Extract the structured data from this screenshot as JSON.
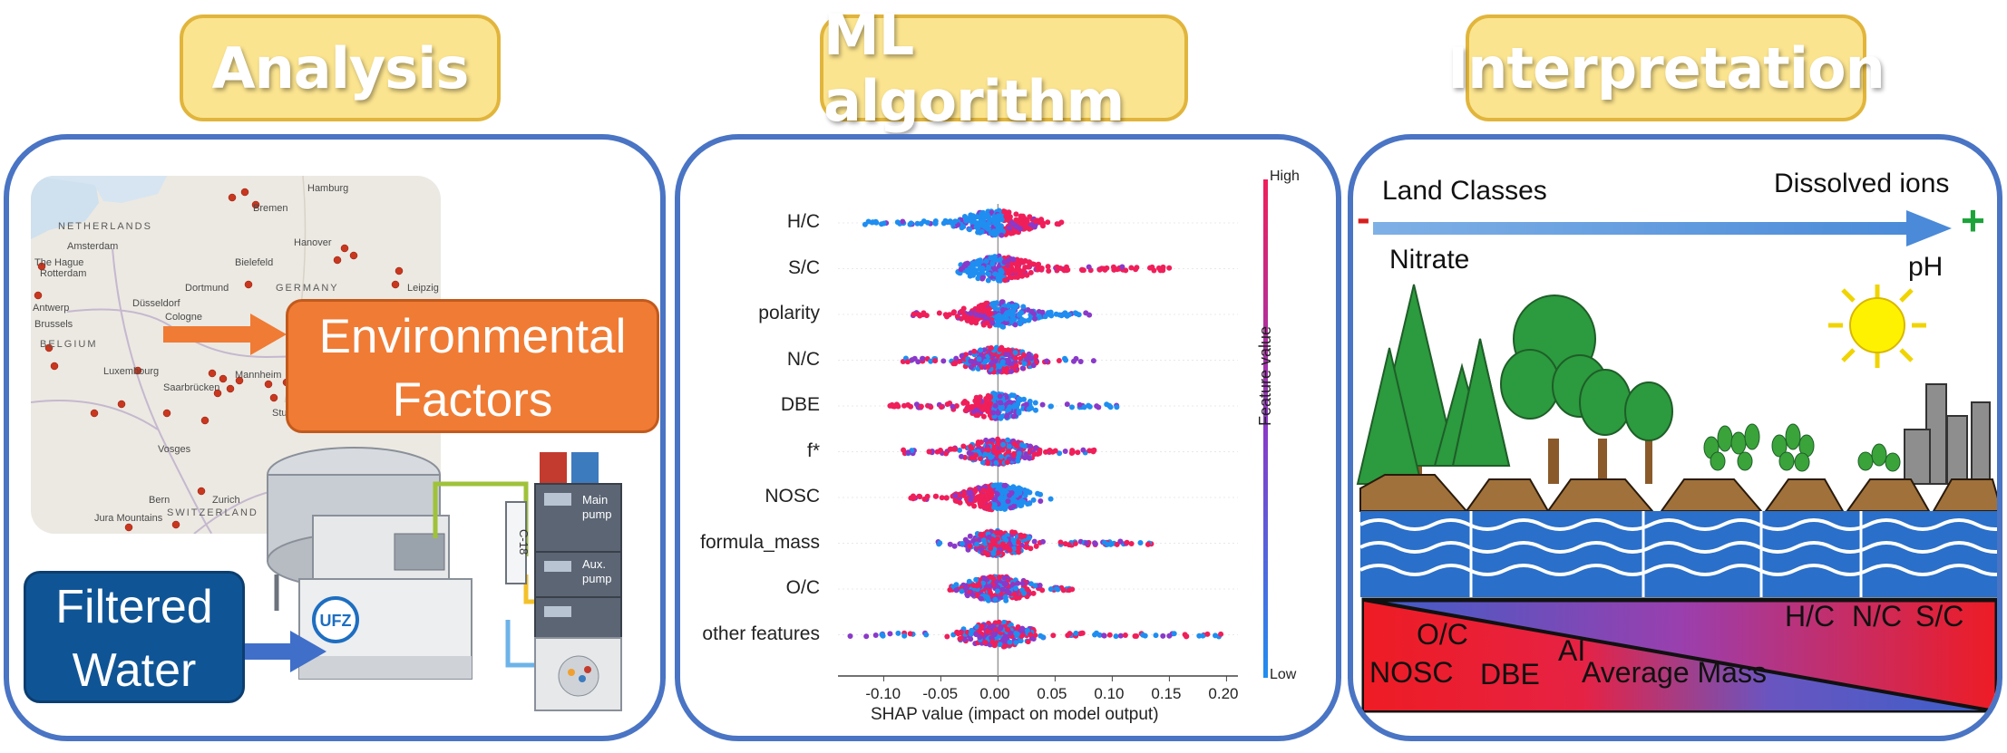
{
  "titles": {
    "analysis": "Analysis",
    "ml": "ML algorithm",
    "interpretation": "Interpretation"
  },
  "analysis": {
    "env_box_line1": "Environmental",
    "env_box_line2": "Factors",
    "water_box_line1": "Filtered",
    "water_box_line2": "Water",
    "instrument_labels": {
      "main_pump_1": "Main",
      "main_pump_2": "pump",
      "aux_pump_1": "Aux.",
      "aux_pump_2": "pump",
      "column": "C-18",
      "logo": "UFZ"
    },
    "map_labels": {
      "hamburg": "Hamburg",
      "bremen": "Bremen",
      "netherlands": "NETHERLANDS",
      "amsterdam": "Amsterdam",
      "the_hague": "The Hague",
      "rotterdam": "Rotterdam",
      "bielefeld": "Bielefeld",
      "hanover": "Hanover",
      "dortmund": "Dortmund",
      "germany": "GERMANY",
      "dusseldorf": "Düsseldorf",
      "antwerp": "Antwerp",
      "cologne": "Cologne",
      "brussels": "Brussels",
      "leipzig": "Leipzig",
      "belgium": "BELGIUM",
      "luxembourg": "Luxembourg",
      "saarbrucken": "Saarbrücken",
      "mannheim": "Mannheim",
      "stuttgart": "Stuttgart",
      "vosges": "Vosges",
      "bern": "Bern",
      "switzerland": "SWITZERLAND",
      "zurich": "Zurich",
      "jura": "Jura Mountains"
    }
  },
  "chart_data": {
    "type": "scatter",
    "subtype": "beeswarm",
    "title": "",
    "xlabel": "SHAP value (impact on model output)",
    "xlim": [
      -0.14,
      0.21
    ],
    "xticks": [
      "-0.10",
      "-0.05",
      "0.00",
      "0.05",
      "0.10",
      "0.15",
      "0.20"
    ],
    "xtick_values": [
      -0.1,
      -0.05,
      0.0,
      0.05,
      0.1,
      0.15,
      0.2
    ],
    "colorbar_label": "Feature value",
    "colorbar_high": "High",
    "colorbar_low": "Low",
    "colors": {
      "high": "#ef1f5a",
      "mid": "#8a39c8",
      "low": "#1f8ef0"
    },
    "features": [
      {
        "name": "H/C",
        "min": -0.12,
        "max": 0.06,
        "hot_side": "right"
      },
      {
        "name": "S/C",
        "min": -0.035,
        "max": 0.15,
        "hot_side": "right"
      },
      {
        "name": "polarity",
        "min": -0.075,
        "max": 0.08,
        "hot_side": "left"
      },
      {
        "name": "N/C",
        "min": -0.085,
        "max": 0.085,
        "hot_side": "mixed"
      },
      {
        "name": "DBE",
        "min": -0.095,
        "max": 0.105,
        "hot_side": "left"
      },
      {
        "name": "f*",
        "min": -0.085,
        "max": 0.085,
        "hot_side": "mixed"
      },
      {
        "name": "NOSC",
        "min": -0.08,
        "max": 0.05,
        "hot_side": "left"
      },
      {
        "name": "formula_mass",
        "min": -0.055,
        "max": 0.135,
        "hot_side": "mixed"
      },
      {
        "name": "O/C",
        "min": -0.045,
        "max": 0.065,
        "hot_side": "mixed"
      },
      {
        "name": "other features",
        "min": -0.13,
        "max": 0.2,
        "hot_side": "mixed"
      }
    ]
  },
  "interpretation": {
    "land_classes": "Land Classes",
    "dissolved_ions": "Dissolved ions",
    "minus": "-",
    "plus": "+",
    "nitrate": "Nitrate",
    "ph": "pH",
    "labels": {
      "oc": "O/C",
      "nosc": "NOSC",
      "dbe": "DBE",
      "ai": "AI",
      "average_mass": "Average Mass",
      "hc": "H/C",
      "nc": "N/C",
      "sc": "S/C"
    }
  }
}
